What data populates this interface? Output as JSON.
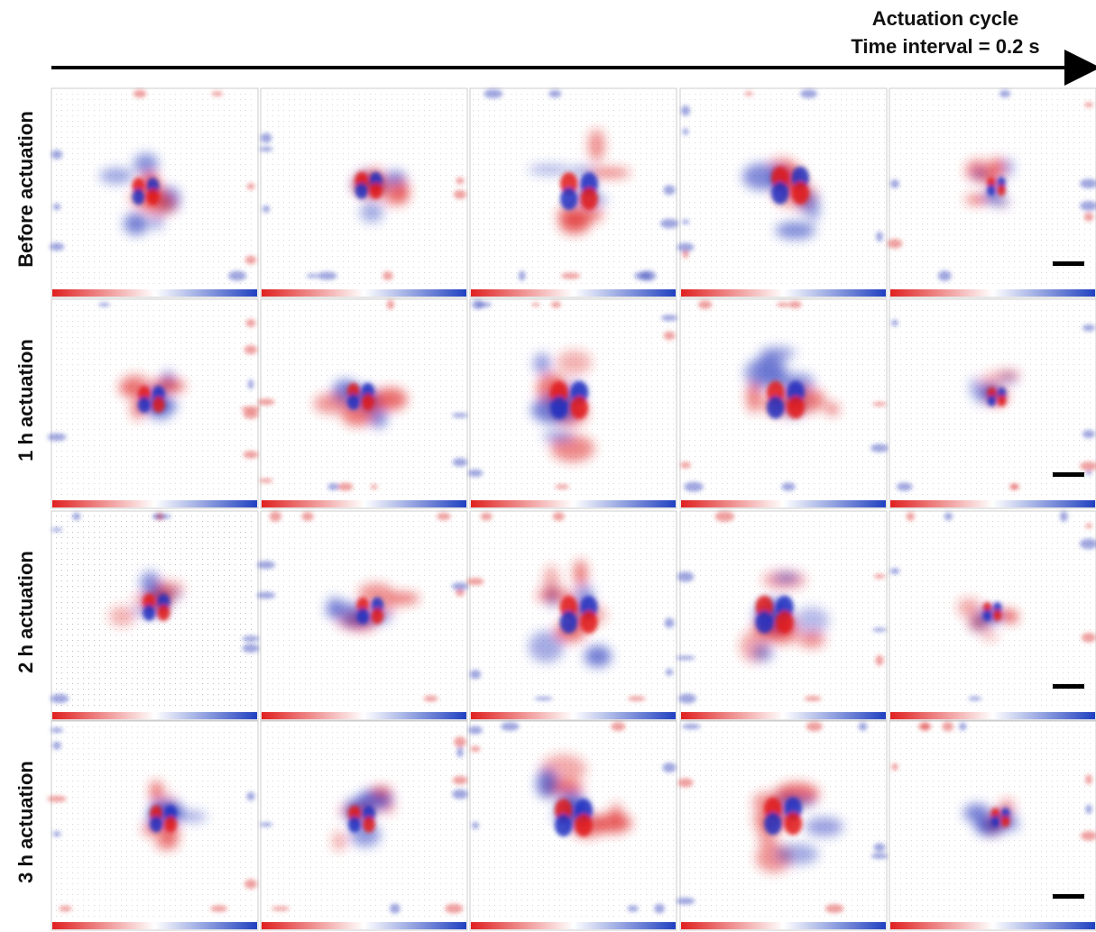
{
  "header": {
    "title": "Actuation cycle",
    "subtitle": "Time interval = 0.2 s"
  },
  "rows": [
    {
      "label": "Before actuation"
    },
    {
      "label": "1 h actuation"
    },
    {
      "label": "2 h actuation"
    },
    {
      "label": "3 h actuation"
    }
  ]
}
